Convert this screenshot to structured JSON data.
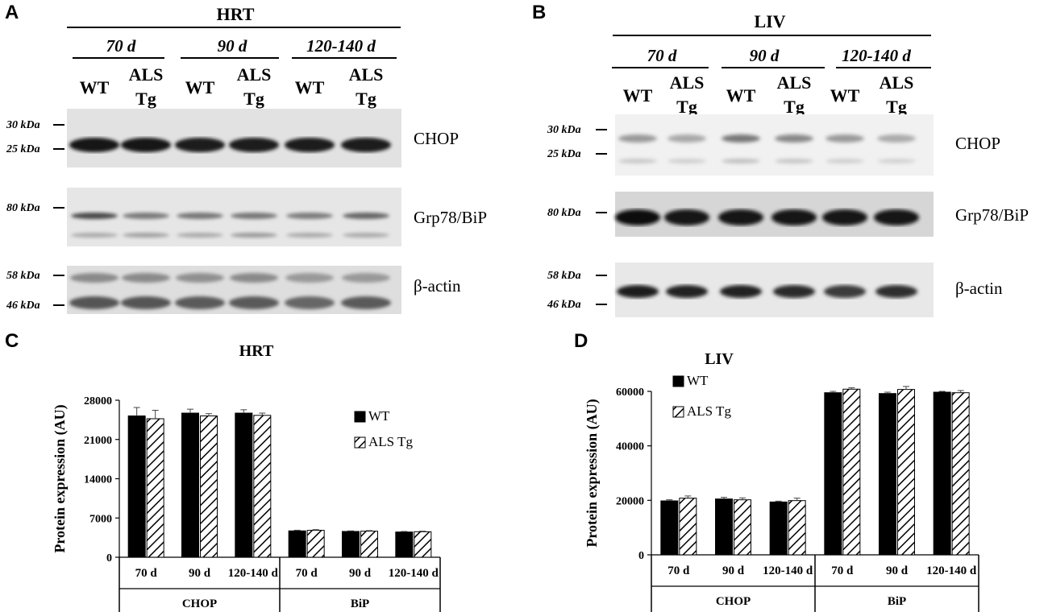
{
  "panels": {
    "a": "A",
    "b": "B",
    "c": "C",
    "d": "D"
  },
  "blot_a": {
    "title": "HRT",
    "groups": [
      "70 d",
      "90 d",
      "120-140 d"
    ],
    "lanes": [
      "WT",
      "ALS\nTg",
      "WT",
      "ALS\nTg",
      "WT",
      "ALS\nTg"
    ],
    "lane_labels": {
      "wt": "WT",
      "als": "ALS",
      "tg": "Tg"
    },
    "markers": {
      "m30": "30 kDa",
      "m25": "25 kDa",
      "m80": "80 kDa",
      "m58": "58 kDa",
      "m46": "46 kDa"
    },
    "proteins": {
      "chop": "CHOP",
      "bip": "Grp78/BiP",
      "actin": "β-actin"
    }
  },
  "blot_b": {
    "title": "LIV",
    "groups": [
      "70 d",
      "90 d",
      "120-140 d"
    ],
    "lane_labels": {
      "wt": "WT",
      "als": "ALS",
      "tg": "Tg"
    },
    "markers": {
      "m30": "30 kDa",
      "m25": "25 kDa",
      "m80": "80 kDa",
      "m58": "58 kDa",
      "m46": "46 kDa"
    },
    "proteins": {
      "chop": "CHOP",
      "bip": "Grp78/BiP",
      "actin": "β-actin"
    }
  },
  "colors": {
    "wt": "#000000",
    "als_hatch": "#000000",
    "blot_bg": "#d9d9d9"
  },
  "chart_data": [
    {
      "type": "bar",
      "title": "HRT",
      "ylabel": "Protein expression (AU)",
      "xlabel": "",
      "ylim": [
        0,
        28000
      ],
      "yticks": [
        0,
        7000,
        14000,
        21000,
        28000
      ],
      "groups": [
        "CHOP",
        "BiP"
      ],
      "categories": [
        "70 d",
        "90 d",
        "120-140 d",
        "70 d",
        "90 d",
        "120-140 d"
      ],
      "series": [
        {
          "name": "WT",
          "values": [
            25200,
            25700,
            25700,
            4700,
            4600,
            4500
          ],
          "errors": [
            1500,
            700,
            600,
            120,
            100,
            100
          ]
        },
        {
          "name": "ALS Tg",
          "values": [
            24700,
            25200,
            25300,
            4800,
            4650,
            4550
          ],
          "errors": [
            1500,
            400,
            400,
            120,
            100,
            100
          ]
        }
      ],
      "legend": "right"
    },
    {
      "type": "bar",
      "title": "LIV",
      "ylabel": "Protein expression (AU)",
      "xlabel": "",
      "ylim": [
        0,
        60000
      ],
      "yticks": [
        0,
        20000,
        40000,
        60000
      ],
      "groups": [
        "CHOP",
        "BiP"
      ],
      "categories": [
        "70 d",
        "90 d",
        "120-140 d",
        "70 d",
        "90 d",
        "120-140 d"
      ],
      "series": [
        {
          "name": "WT",
          "values": [
            19800,
            20500,
            19400,
            59500,
            59200,
            59700
          ],
          "errors": [
            400,
            600,
            300,
            500,
            500,
            300
          ]
        },
        {
          "name": "ALS Tg",
          "values": [
            20800,
            20200,
            19900,
            60800,
            60700,
            59500
          ],
          "errors": [
            800,
            700,
            900,
            500,
            1100,
            800
          ]
        }
      ],
      "legend": "top-left"
    }
  ]
}
